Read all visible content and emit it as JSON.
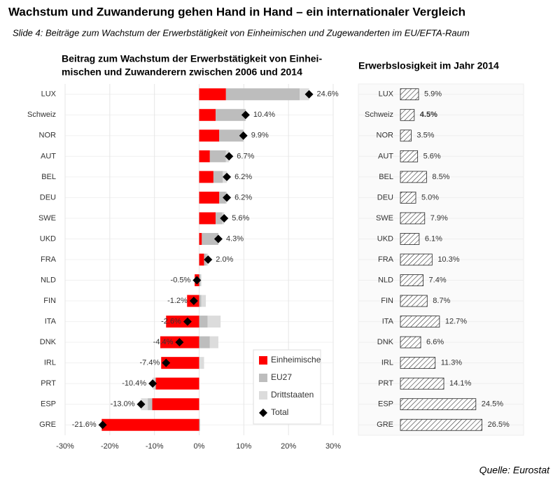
{
  "title": "Wachstum und Zuwanderung gehen Hand in Hand – ein internationaler Vergleich",
  "subtitle": "Slide 4: Beiträge zum Wachstum der Erwerbstätigkeit von Einheimischen und Zugewanderten im EU/EFTA-Raum",
  "source": "Quelle: Eurostat",
  "chart_data": [
    {
      "type": "stacked_bar",
      "orientation": "horizontal",
      "title": [
        "Beitrag zum Wachstum der Erwerbstätigkeit von Einhei-",
        "mischen und Zuwanderern zwischen 2006 und 2014"
      ],
      "categories": [
        "LUX",
        "Schweiz",
        "NOR",
        "AUT",
        "BEL",
        "DEU",
        "SWE",
        "UKD",
        "FRA",
        "NLD",
        "FIN",
        "ITA",
        "DNK",
        "IRL",
        "PRT",
        "ESP",
        "GRE"
      ],
      "series": [
        {
          "name": "Einheimische",
          "color": "#ff0000",
          "values": [
            6.0,
            3.7,
            4.5,
            2.4,
            3.2,
            4.5,
            3.7,
            0.6,
            1.1,
            -1.0,
            -2.7,
            -7.4,
            -8.7,
            -8.5,
            -9.7,
            -10.5,
            -21.8
          ]
        },
        {
          "name": "EU27",
          "color": "#bdbdbd",
          "values": [
            16.5,
            6.7,
            5.4,
            3.6,
            2.1,
            1.5,
            1.5,
            3.7,
            0.6,
            0.3,
            0.5,
            1.9,
            2.4,
            0,
            -0.3,
            -1.0,
            0.2
          ]
        },
        {
          "name": "Drittstaaten",
          "color": "#dcdcdc",
          "values": [
            2.1,
            0,
            0,
            0.7,
            0.9,
            0.2,
            0.4,
            0,
            0.3,
            0.2,
            1.0,
            2.9,
            1.9,
            1.1,
            -0.4,
            -1.5,
            0
          ]
        },
        {
          "name": "Total",
          "color": "#000000",
          "marker": "diamond",
          "values": [
            24.6,
            10.4,
            9.9,
            6.7,
            6.2,
            6.2,
            5.6,
            4.3,
            2.0,
            -0.5,
            -1.2,
            -2.6,
            -4.4,
            -7.4,
            -10.4,
            -13.0,
            -21.6
          ],
          "value_labels": [
            "24.6%",
            "10.4%",
            "9.9%",
            "6.7%",
            "6.2%",
            "6.2%",
            "5.6%",
            "4.3%",
            "2.0%",
            "-0.5%",
            "-1.2%",
            "-2.6%",
            "-4.4%",
            "-7.4%",
            "-10.4%",
            "-13.0%",
            "-21.6%"
          ]
        }
      ],
      "xlim": [
        -30,
        30
      ],
      "xticks": [
        {
          "value": -30,
          "label": "-30%"
        },
        {
          "value": -20,
          "label": "-20%"
        },
        {
          "value": -10,
          "label": "-10%"
        },
        {
          "value": 0,
          "label": "0%"
        },
        {
          "value": 10,
          "label": "10%"
        },
        {
          "value": 20,
          "label": "20%"
        },
        {
          "value": 30,
          "label": "30%"
        }
      ],
      "grid": true,
      "legend": "bottom-right"
    },
    {
      "type": "bar",
      "orientation": "horizontal",
      "pattern": "hatch",
      "title": "Erwerbslosigkeit im Jahr 2014",
      "categories": [
        "LUX",
        "Schweiz",
        "NOR",
        "AUT",
        "BEL",
        "DEU",
        "SWE",
        "UKD",
        "FRA",
        "NLD",
        "FIN",
        "ITA",
        "DNK",
        "IRL",
        "PRT",
        "ESP",
        "GRE"
      ],
      "values": [
        5.9,
        4.5,
        3.5,
        5.6,
        8.5,
        5.0,
        7.9,
        6.1,
        10.3,
        7.4,
        8.7,
        12.7,
        6.6,
        11.3,
        14.1,
        24.5,
        26.5
      ],
      "value_labels": [
        "5.9%",
        "4.5%",
        "3.5%",
        "5.6%",
        "8.5%",
        "5.0%",
        "7.9%",
        "6.1%",
        "10.3%",
        "7.4%",
        "8.7%",
        "12.7%",
        "6.6%",
        "11.3%",
        "14.1%",
        "24.5%",
        "26.5%"
      ],
      "value_label_colors": [
        "#222222",
        "#ff0000",
        "#222222",
        "#222222",
        "#222222",
        "#222222",
        "#222222",
        "#222222",
        "#222222",
        "#222222",
        "#222222",
        "#222222",
        "#222222",
        "#222222",
        "#222222",
        "#222222",
        "#222222"
      ],
      "xlim": [
        0,
        40
      ]
    }
  ]
}
